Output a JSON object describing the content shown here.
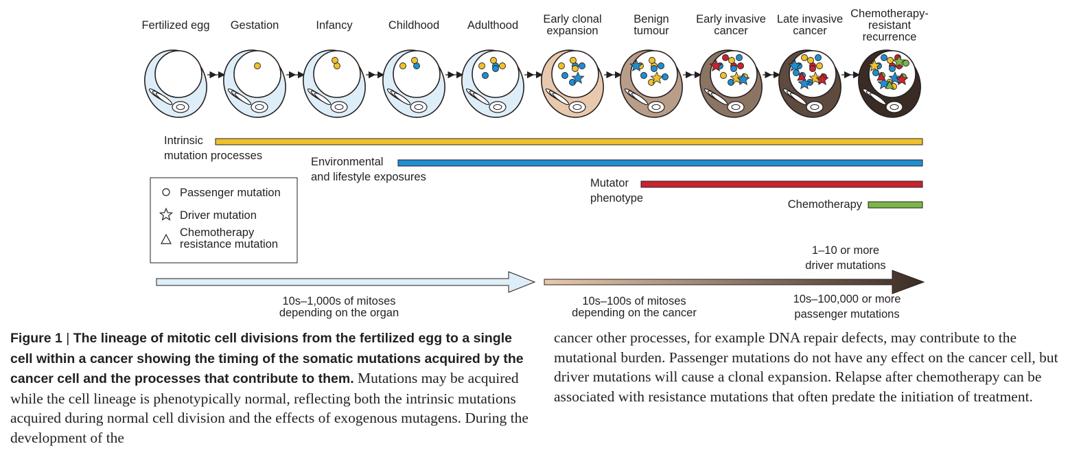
{
  "figure": {
    "stages": [
      {
        "label_lines": [
          "Fertilized egg"
        ],
        "fill": "#deeef8",
        "passenger_dots": [],
        "driver_stars": [],
        "resistance_triangles": []
      },
      {
        "label_lines": [
          "Gestation"
        ],
        "fill": "#deeef8",
        "passenger_dots": [
          "yellow"
        ],
        "driver_stars": [],
        "resistance_triangles": []
      },
      {
        "label_lines": [
          "Infancy"
        ],
        "fill": "#deeef8",
        "passenger_dots": [
          "yellow",
          "yellow"
        ],
        "driver_stars": [],
        "resistance_triangles": []
      },
      {
        "label_lines": [
          "Childhood"
        ],
        "fill": "#deeef8",
        "passenger_dots": [
          "blue",
          "yellow",
          "yellow"
        ],
        "driver_stars": [],
        "resistance_triangles": []
      },
      {
        "label_lines": [
          "Adulthood"
        ],
        "fill": "#deeef8",
        "passenger_dots": [
          "blue",
          "yellow",
          "yellow",
          "blue",
          "blue",
          "yellow"
        ],
        "driver_stars": [],
        "resistance_triangles": []
      },
      {
        "label_lines": [
          "Early clonal",
          "expansion"
        ],
        "fill": "#e9c9ad",
        "passenger_dots": [
          "blue",
          "yellow",
          "yellow",
          "blue",
          "yellow",
          "blue",
          "blue"
        ],
        "driver_stars": [
          "blue"
        ],
        "resistance_triangles": []
      },
      {
        "label_lines": [
          "Benign",
          "tumour"
        ],
        "fill": "#b99d88",
        "passenger_dots": [
          "yellow",
          "yellow",
          "yellow",
          "blue",
          "blue",
          "blue",
          "yellow",
          "blue"
        ],
        "driver_stars": [
          "yellow",
          "blue"
        ],
        "resistance_triangles": []
      },
      {
        "label_lines": [
          "Early invasive",
          "cancer"
        ],
        "fill": "#8c7463",
        "passenger_dots": [
          "red",
          "yellow",
          "blue",
          "yellow",
          "blue",
          "red",
          "blue",
          "yellow",
          "red",
          "blue"
        ],
        "driver_stars": [
          "yellow",
          "red",
          "blue"
        ],
        "resistance_triangles": []
      },
      {
        "label_lines": [
          "Late invasive",
          "cancer"
        ],
        "fill": "#5e4a3e",
        "passenger_dots": [
          "red",
          "yellow",
          "blue",
          "blue",
          "red",
          "yellow",
          "blue",
          "red",
          "yellow",
          "blue",
          "blue"
        ],
        "driver_stars": [
          "yellow",
          "blue",
          "red",
          "blue"
        ],
        "resistance_triangles": [
          "red"
        ]
      },
      {
        "label_lines": [
          "Chemotherapy-",
          "resistant",
          "recurrence"
        ],
        "fill": "#3a2c24",
        "passenger_dots": [
          "red",
          "yellow",
          "blue",
          "green",
          "blue",
          "red",
          "yellow",
          "green",
          "blue",
          "red",
          "blue",
          "yellow",
          "green"
        ],
        "driver_stars": [
          "blue",
          "yellow",
          "red",
          "blue",
          "green"
        ],
        "resistance_triangles": [
          "red",
          "green"
        ]
      }
    ],
    "processes": [
      {
        "label_lines": [
          "Intrinsic",
          "mutation processes"
        ],
        "color": "#f0c12c"
      },
      {
        "label_lines": [
          "Environmental",
          "and lifestyle exposures"
        ],
        "color": "#1f8ed1"
      },
      {
        "label_lines": [
          "Mutator",
          "phenotype"
        ],
        "color": "#c8232f"
      },
      {
        "label_lines": [
          "Chemotherapy"
        ],
        "color": "#7ab648"
      }
    ],
    "legend": [
      {
        "shape": "circle",
        "label_lines": [
          "Passenger mutation"
        ]
      },
      {
        "shape": "star",
        "label_lines": [
          "Driver mutation"
        ]
      },
      {
        "shape": "triangle",
        "label_lines": [
          "Chemotherapy",
          "resistance mutation"
        ]
      }
    ],
    "timeline": {
      "normal_label_lines": [
        "10s–1,000s of mitoses",
        "depending on the organ"
      ],
      "cancer_label_lines": [
        "10s–100s of mitoses",
        "depending on the cancer"
      ],
      "driver_label_lines": [
        "1–10 or more",
        "driver mutations"
      ],
      "passenger_label_lines": [
        "10s–100,000 or more",
        "passenger mutations"
      ]
    },
    "colors": {
      "yellow": "#f0c12c",
      "blue": "#1f8ed1",
      "red": "#c8232f",
      "green": "#7ab648",
      "outline": "#231f20",
      "normal_arrow": "#deeef8",
      "cancer_arrow_start": "#e9c9ad",
      "cancer_arrow_end": "#3a2c24"
    }
  },
  "caption": {
    "label": "Figure 1",
    "separator": "|",
    "title": "The lineage of mitotic cell divisions from the fertilized egg to a single cell within a cancer showing the timing of the somatic mutations acquired by the cancer cell and the processes that contribute to them.",
    "body_left": "Mutations may be acquired while the cell lineage is phenotypically normal, reflecting both the intrinsic mutations acquired during normal cell division and the effects of exogenous mutagens. During the development of the",
    "body_right": "cancer other processes, for example DNA repair defects, may contribute to the mutational burden. Passenger mutations do not have any effect on the cancer cell, but driver mutations will cause a clonal expansion. Relapse after chemotherapy can be associated with resistance mutations that often predate the initiation of treatment."
  }
}
